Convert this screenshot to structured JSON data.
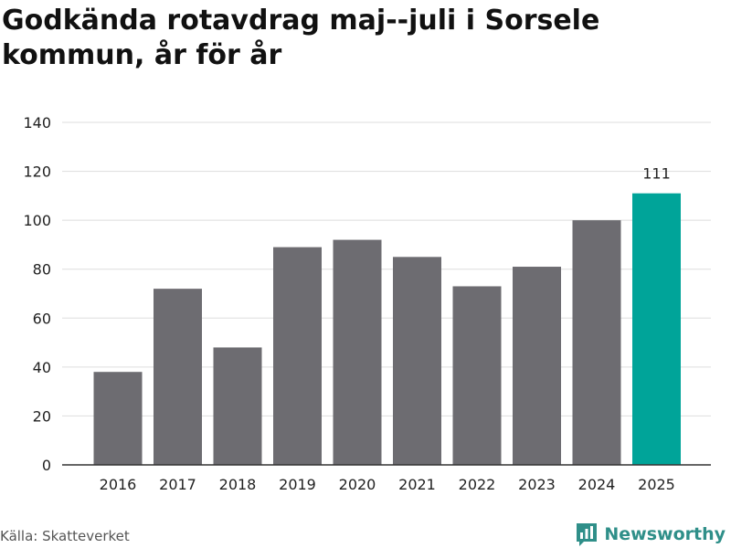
{
  "title": "Godkända rotavdrag maj--juli i Sorsele kommun, år för år",
  "source": "Källa: Skatteverket",
  "brand": {
    "name": "Newsworthy",
    "icon": "newsworthy-logo-icon"
  },
  "colors": {
    "bar": "#6d6c71",
    "highlight": "#00a499",
    "grid": "#dddddd",
    "axis": "#333333"
  },
  "chart_data": {
    "type": "bar",
    "categories": [
      "2016",
      "2017",
      "2018",
      "2019",
      "2020",
      "2021",
      "2022",
      "2023",
      "2024",
      "2025"
    ],
    "values": [
      38,
      72,
      48,
      89,
      92,
      85,
      73,
      81,
      100,
      111
    ],
    "highlight_index": 9,
    "data_labels": [
      {
        "index": 9,
        "text": "111"
      }
    ],
    "yticks": [
      0,
      20,
      40,
      60,
      80,
      100,
      120,
      140
    ],
    "ylim": [
      0,
      140
    ],
    "grid": true
  }
}
